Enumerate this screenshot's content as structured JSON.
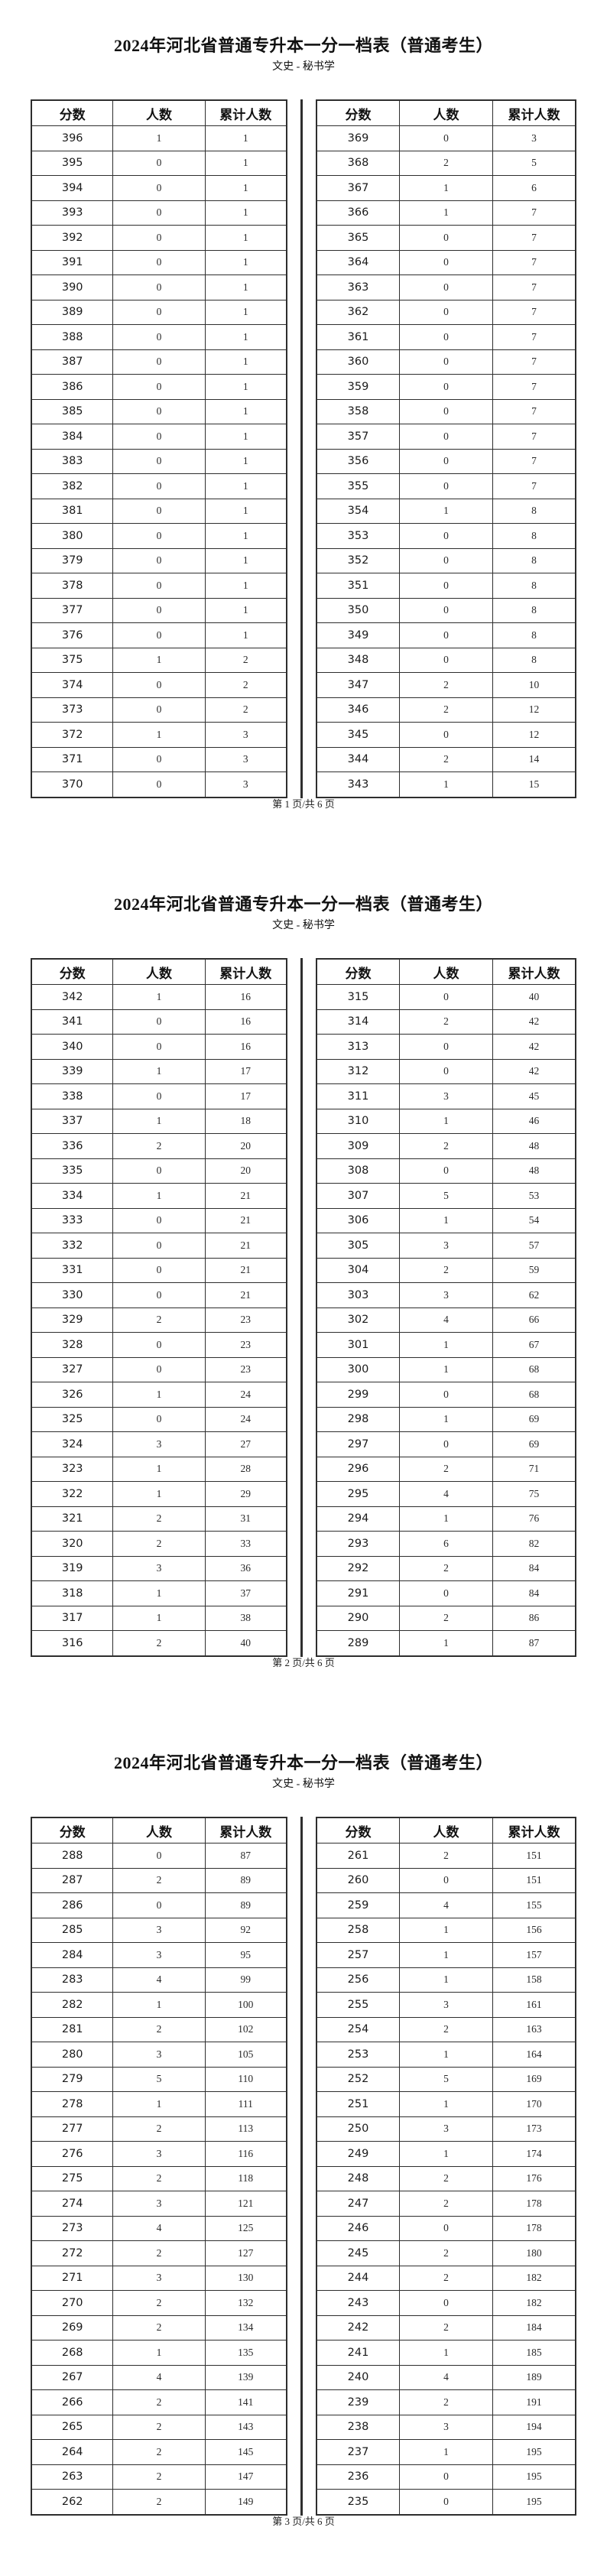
{
  "doc": {
    "title": "2024年河北省普通专升本一分一档表（普通考生）",
    "subtitle": "文史 - 秘书学",
    "columns": [
      "分数",
      "人数",
      "累计人数"
    ]
  },
  "pages": [
    {
      "footer": "第 1 页/共 6 页",
      "left_rows": [
        [
          396,
          1,
          1
        ],
        [
          395,
          0,
          1
        ],
        [
          394,
          0,
          1
        ],
        [
          393,
          0,
          1
        ],
        [
          392,
          0,
          1
        ],
        [
          391,
          0,
          1
        ],
        [
          390,
          0,
          1
        ],
        [
          389,
          0,
          1
        ],
        [
          388,
          0,
          1
        ],
        [
          387,
          0,
          1
        ],
        [
          386,
          0,
          1
        ],
        [
          385,
          0,
          1
        ],
        [
          384,
          0,
          1
        ],
        [
          383,
          0,
          1
        ],
        [
          382,
          0,
          1
        ],
        [
          381,
          0,
          1
        ],
        [
          380,
          0,
          1
        ],
        [
          379,
          0,
          1
        ],
        [
          378,
          0,
          1
        ],
        [
          377,
          0,
          1
        ],
        [
          376,
          0,
          1
        ],
        [
          375,
          1,
          2
        ],
        [
          374,
          0,
          2
        ],
        [
          373,
          0,
          2
        ],
        [
          372,
          1,
          3
        ],
        [
          371,
          0,
          3
        ],
        [
          370,
          0,
          3
        ]
      ],
      "right_rows": [
        [
          369,
          0,
          3
        ],
        [
          368,
          2,
          5
        ],
        [
          367,
          1,
          6
        ],
        [
          366,
          1,
          7
        ],
        [
          365,
          0,
          7
        ],
        [
          364,
          0,
          7
        ],
        [
          363,
          0,
          7
        ],
        [
          362,
          0,
          7
        ],
        [
          361,
          0,
          7
        ],
        [
          360,
          0,
          7
        ],
        [
          359,
          0,
          7
        ],
        [
          358,
          0,
          7
        ],
        [
          357,
          0,
          7
        ],
        [
          356,
          0,
          7
        ],
        [
          355,
          0,
          7
        ],
        [
          354,
          1,
          8
        ],
        [
          353,
          0,
          8
        ],
        [
          352,
          0,
          8
        ],
        [
          351,
          0,
          8
        ],
        [
          350,
          0,
          8
        ],
        [
          349,
          0,
          8
        ],
        [
          348,
          0,
          8
        ],
        [
          347,
          2,
          10
        ],
        [
          346,
          2,
          12
        ],
        [
          345,
          0,
          12
        ],
        [
          344,
          2,
          14
        ],
        [
          343,
          1,
          15
        ]
      ]
    },
    {
      "footer": "第 2 页/共 6 页",
      "left_rows": [
        [
          342,
          1,
          16
        ],
        [
          341,
          0,
          16
        ],
        [
          340,
          0,
          16
        ],
        [
          339,
          1,
          17
        ],
        [
          338,
          0,
          17
        ],
        [
          337,
          1,
          18
        ],
        [
          336,
          2,
          20
        ],
        [
          335,
          0,
          20
        ],
        [
          334,
          1,
          21
        ],
        [
          333,
          0,
          21
        ],
        [
          332,
          0,
          21
        ],
        [
          331,
          0,
          21
        ],
        [
          330,
          0,
          21
        ],
        [
          329,
          2,
          23
        ],
        [
          328,
          0,
          23
        ],
        [
          327,
          0,
          23
        ],
        [
          326,
          1,
          24
        ],
        [
          325,
          0,
          24
        ],
        [
          324,
          3,
          27
        ],
        [
          323,
          1,
          28
        ],
        [
          322,
          1,
          29
        ],
        [
          321,
          2,
          31
        ],
        [
          320,
          2,
          33
        ],
        [
          319,
          3,
          36
        ],
        [
          318,
          1,
          37
        ],
        [
          317,
          1,
          38
        ],
        [
          316,
          2,
          40
        ]
      ],
      "right_rows": [
        [
          315,
          0,
          40
        ],
        [
          314,
          2,
          42
        ],
        [
          313,
          0,
          42
        ],
        [
          312,
          0,
          42
        ],
        [
          311,
          3,
          45
        ],
        [
          310,
          1,
          46
        ],
        [
          309,
          2,
          48
        ],
        [
          308,
          0,
          48
        ],
        [
          307,
          5,
          53
        ],
        [
          306,
          1,
          54
        ],
        [
          305,
          3,
          57
        ],
        [
          304,
          2,
          59
        ],
        [
          303,
          3,
          62
        ],
        [
          302,
          4,
          66
        ],
        [
          301,
          1,
          67
        ],
        [
          300,
          1,
          68
        ],
        [
          299,
          0,
          68
        ],
        [
          298,
          1,
          69
        ],
        [
          297,
          0,
          69
        ],
        [
          296,
          2,
          71
        ],
        [
          295,
          4,
          75
        ],
        [
          294,
          1,
          76
        ],
        [
          293,
          6,
          82
        ],
        [
          292,
          2,
          84
        ],
        [
          291,
          0,
          84
        ],
        [
          290,
          2,
          86
        ],
        [
          289,
          1,
          87
        ]
      ]
    },
    {
      "footer": "第 3 页/共 6 页",
      "left_rows": [
        [
          288,
          0,
          87
        ],
        [
          287,
          2,
          89
        ],
        [
          286,
          0,
          89
        ],
        [
          285,
          3,
          92
        ],
        [
          284,
          3,
          95
        ],
        [
          283,
          4,
          99
        ],
        [
          282,
          1,
          100
        ],
        [
          281,
          2,
          102
        ],
        [
          280,
          3,
          105
        ],
        [
          279,
          5,
          110
        ],
        [
          278,
          1,
          111
        ],
        [
          277,
          2,
          113
        ],
        [
          276,
          3,
          116
        ],
        [
          275,
          2,
          118
        ],
        [
          274,
          3,
          121
        ],
        [
          273,
          4,
          125
        ],
        [
          272,
          2,
          127
        ],
        [
          271,
          3,
          130
        ],
        [
          270,
          2,
          132
        ],
        [
          269,
          2,
          134
        ],
        [
          268,
          1,
          135
        ],
        [
          267,
          4,
          139
        ],
        [
          266,
          2,
          141
        ],
        [
          265,
          2,
          143
        ],
        [
          264,
          2,
          145
        ],
        [
          263,
          2,
          147
        ],
        [
          262,
          2,
          149
        ]
      ],
      "right_rows": [
        [
          261,
          2,
          151
        ],
        [
          260,
          0,
          151
        ],
        [
          259,
          4,
          155
        ],
        [
          258,
          1,
          156
        ],
        [
          257,
          1,
          157
        ],
        [
          256,
          1,
          158
        ],
        [
          255,
          3,
          161
        ],
        [
          254,
          2,
          163
        ],
        [
          253,
          1,
          164
        ],
        [
          252,
          5,
          169
        ],
        [
          251,
          1,
          170
        ],
        [
          250,
          3,
          173
        ],
        [
          249,
          1,
          174
        ],
        [
          248,
          2,
          176
        ],
        [
          247,
          2,
          178
        ],
        [
          246,
          0,
          178
        ],
        [
          245,
          2,
          180
        ],
        [
          244,
          2,
          182
        ],
        [
          243,
          0,
          182
        ],
        [
          242,
          2,
          184
        ],
        [
          241,
          1,
          185
        ],
        [
          240,
          4,
          189
        ],
        [
          239,
          2,
          191
        ],
        [
          238,
          3,
          194
        ],
        [
          237,
          1,
          195
        ],
        [
          236,
          0,
          195
        ],
        [
          235,
          0,
          195
        ]
      ]
    }
  ]
}
